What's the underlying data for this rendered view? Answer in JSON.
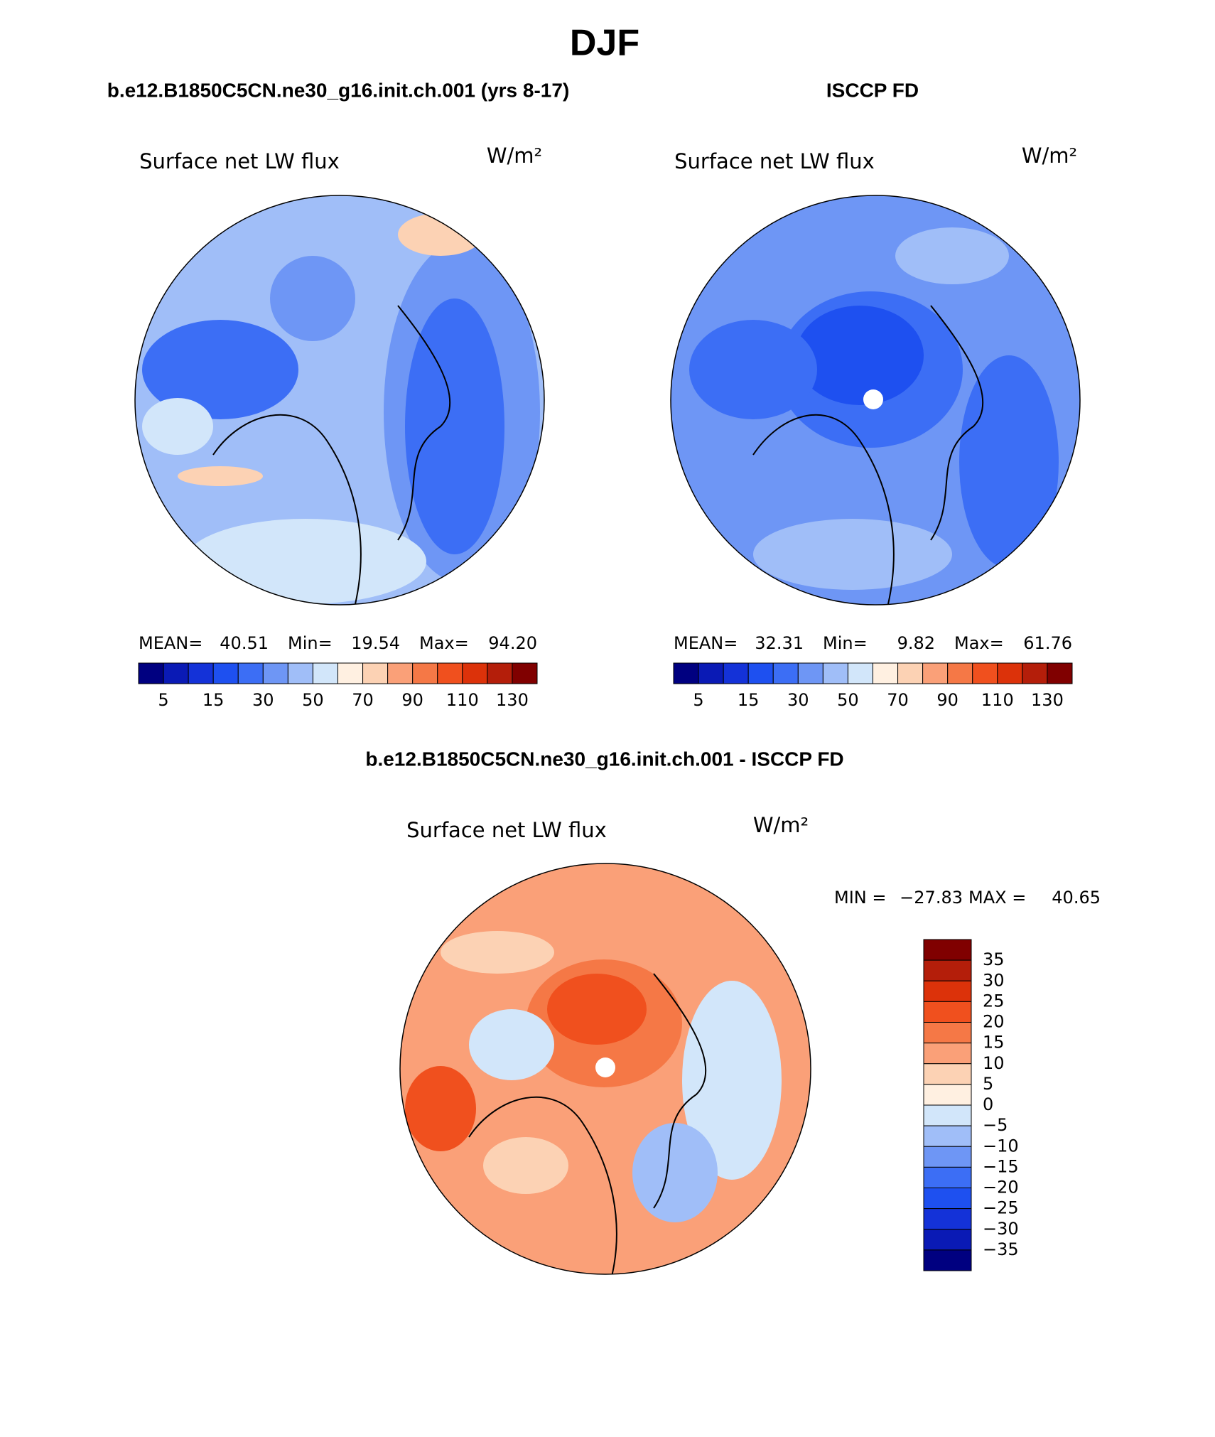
{
  "title": "DJF",
  "panels": [
    {
      "subtitle": "b.e12.B1850C5CN.ne30_g16.init.ch.001 (yrs 8-17)",
      "variable": "Surface net LW flux",
      "units": "W/m²",
      "stats": [
        {
          "label": "MEAN=",
          "value": "40.51"
        },
        {
          "label": "Min=",
          "value": "19.54"
        },
        {
          "label": "Max=",
          "value": "94.20"
        }
      ],
      "colorbar": {
        "colors": [
          "#000080",
          "#0a1ab5",
          "#1432d8",
          "#1e50f0",
          "#3c6ef5",
          "#6e96f5",
          "#a0bef8",
          "#d2e6fa",
          "#fff0e1",
          "#fcd2b4",
          "#faa078",
          "#f57846",
          "#f0501e",
          "#dc320a",
          "#b41e0a",
          "#800000"
        ],
        "labels": [
          "5",
          "15",
          "30",
          "50",
          "70",
          "90",
          "110",
          "130"
        ]
      }
    },
    {
      "subtitle": "ISCCP FD",
      "variable": "Surface net LW flux",
      "units": "W/m²",
      "stats": [
        {
          "label": "MEAN=",
          "value": "32.31"
        },
        {
          "label": "Min=",
          "value": "9.82"
        },
        {
          "label": "Max=",
          "value": "61.76"
        }
      ],
      "colorbar": {
        "colors": [
          "#000080",
          "#0a1ab5",
          "#1432d8",
          "#1e50f0",
          "#3c6ef5",
          "#6e96f5",
          "#a0bef8",
          "#d2e6fa",
          "#fff0e1",
          "#fcd2b4",
          "#faa078",
          "#f57846",
          "#f0501e",
          "#dc320a",
          "#b41e0a",
          "#800000"
        ],
        "labels": [
          "5",
          "15",
          "30",
          "50",
          "70",
          "90",
          "110",
          "130"
        ]
      }
    },
    {
      "subtitle": "b.e12.B1850C5CN.ne30_g16.init.ch.001 - ISCCP FD",
      "variable": "Surface net LW flux",
      "units": "W/m²",
      "stats": [
        {
          "label": "MIN =",
          "value": "−27.83"
        },
        {
          "label": "MAX =",
          "value": "40.65"
        }
      ],
      "colorbar": {
        "colors": [
          "#800000",
          "#b41e0a",
          "#dc320a",
          "#f0501e",
          "#f57846",
          "#faa078",
          "#fcd2b4",
          "#fff0e1",
          "#d2e6fa",
          "#a0bef8",
          "#6e96f5",
          "#3c6ef5",
          "#1e50f0",
          "#1432d8",
          "#0a1ab5",
          "#000080"
        ],
        "labels": [
          "35",
          "30",
          "25",
          "20",
          "15",
          "10",
          "5",
          "0",
          "−5",
          "−10",
          "−15",
          "−20",
          "−25",
          "−30",
          "−35"
        ]
      }
    }
  ]
}
